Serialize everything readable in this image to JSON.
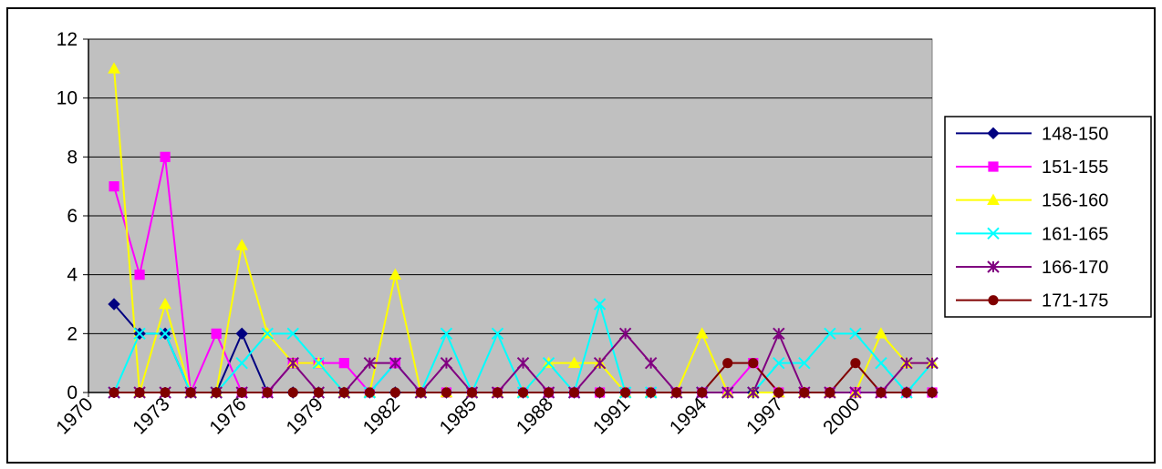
{
  "chart_data": {
    "type": "line",
    "x": [
      1971,
      1972,
      1973,
      1974,
      1975,
      1976,
      1977,
      1978,
      1979,
      1980,
      1981,
      1982,
      1983,
      1984,
      1985,
      1986,
      1987,
      1988,
      1989,
      1990,
      1991,
      1992,
      1993,
      1994,
      1995,
      1996,
      1997,
      1998,
      1999,
      2000,
      2001,
      2002,
      2003
    ],
    "x_tick_labels": [
      "1970",
      "1973",
      "1976",
      "1979",
      "1982",
      "1985",
      "1988",
      "1991",
      "1994",
      "1997",
      "2000"
    ],
    "y_tick_labels": [
      "0",
      "2",
      "4",
      "6",
      "8",
      "10",
      "12"
    ],
    "ylim": [
      0,
      12
    ],
    "grid": true,
    "legend_position": "right",
    "plot_background": "#c0c0c0",
    "series": [
      {
        "name": "148-150",
        "color": "#000080",
        "marker": "diamond",
        "values": [
          3,
          2,
          2,
          0,
          0,
          2,
          0,
          0,
          0,
          0,
          0,
          0,
          0,
          0,
          0,
          0,
          0,
          0,
          0,
          0,
          0,
          0,
          0,
          0,
          0,
          0,
          0,
          0,
          0,
          0,
          0,
          0,
          0
        ]
      },
      {
        "name": "151-155",
        "color": "#ff00ff",
        "marker": "square",
        "values": [
          7,
          4,
          8,
          0,
          2,
          0,
          0,
          1,
          1,
          1,
          0,
          1,
          0,
          0,
          0,
          0,
          0,
          0,
          0,
          0,
          0,
          0,
          0,
          0,
          0,
          1,
          0,
          0,
          0,
          0,
          0,
          0,
          0
        ]
      },
      {
        "name": "156-160",
        "color": "#ffff00",
        "marker": "triangle",
        "values": [
          11,
          0,
          3,
          0,
          0,
          5,
          2,
          1,
          1,
          0,
          0,
          4,
          0,
          0,
          0,
          0,
          0,
          1,
          1,
          1,
          0,
          0,
          0,
          2,
          0,
          0,
          0,
          0,
          0,
          0,
          2,
          1,
          1
        ]
      },
      {
        "name": "161-165",
        "color": "#00ffff",
        "marker": "x",
        "values": [
          0,
          2,
          2,
          0,
          0,
          1,
          2,
          2,
          1,
          0,
          0,
          1,
          0,
          2,
          0,
          2,
          0,
          1,
          0,
          3,
          0,
          0,
          0,
          0,
          0,
          0,
          1,
          1,
          2,
          2,
          1,
          0,
          1
        ]
      },
      {
        "name": "166-170",
        "color": "#800080",
        "marker": "star",
        "values": [
          0,
          0,
          0,
          0,
          0,
          0,
          0,
          1,
          0,
          0,
          1,
          1,
          0,
          1,
          0,
          0,
          1,
          0,
          0,
          1,
          2,
          1,
          0,
          0,
          0,
          0,
          2,
          0,
          0,
          0,
          0,
          1,
          1
        ]
      },
      {
        "name": "171-175",
        "color": "#800000",
        "marker": "circle",
        "values": [
          0,
          0,
          0,
          0,
          0,
          0,
          0,
          0,
          0,
          0,
          0,
          0,
          0,
          0,
          0,
          0,
          0,
          0,
          0,
          0,
          0,
          0,
          0,
          0,
          1,
          1,
          0,
          0,
          0,
          1,
          0,
          0,
          0
        ]
      }
    ]
  }
}
